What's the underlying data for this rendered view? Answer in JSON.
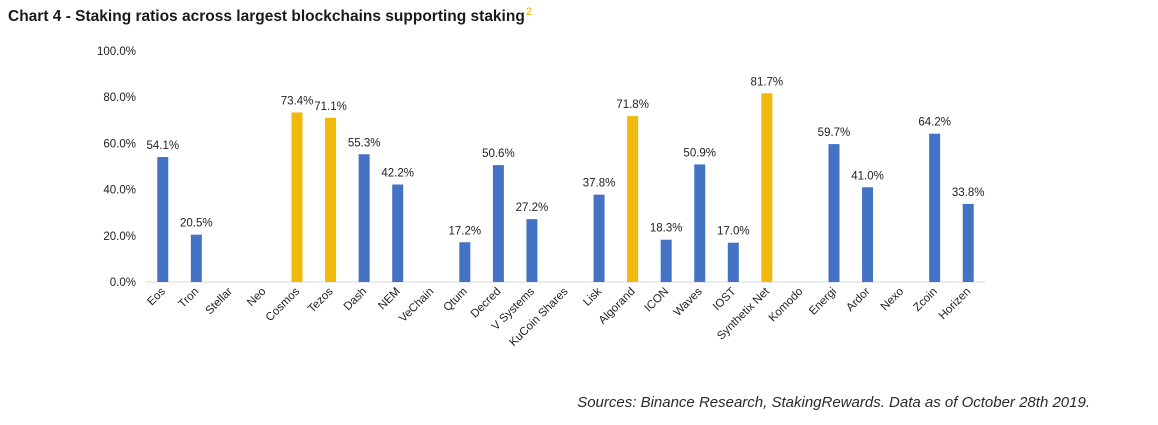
{
  "title": "Chart 4 - Staking ratios across largest blockchains supporting staking",
  "title_footnote": "2",
  "source": "Sources: Binance Research, StakingRewards. Data as of October 28th 2019.",
  "colors": {
    "default": "#4472c4",
    "highlight": "#f0b90b",
    "axis": "#d9d9d9",
    "text": "#222222"
  },
  "chart_data": {
    "type": "bar",
    "title": "Staking ratios across largest blockchains supporting staking",
    "xlabel": "",
    "ylabel": "",
    "ylim": [
      0,
      100
    ],
    "yticks": [
      "0.0%",
      "20.0%",
      "40.0%",
      "60.0%",
      "80.0%",
      "100.0%"
    ],
    "grid": false,
    "categories": [
      "Eos",
      "Tron",
      "Stellar",
      "Neo",
      "Cosmos",
      "Tezos",
      "Dash",
      "NEM",
      "VeChain",
      "Qtum",
      "Decred",
      "V Systems",
      "KuCoin Shares",
      "Lisk",
      "Algorand",
      "ICON",
      "Waves",
      "IOST",
      "Synthetix Net",
      "Komodo",
      "Energi",
      "Ardor",
      "Nexo",
      "Zcoin",
      "Horizen"
    ],
    "values": [
      54.1,
      20.5,
      null,
      null,
      73.4,
      71.1,
      55.3,
      42.2,
      null,
      17.2,
      50.6,
      27.2,
      null,
      37.8,
      71.8,
      18.3,
      50.9,
      17.0,
      81.7,
      null,
      59.7,
      41.0,
      null,
      64.2,
      33.8
    ],
    "labels": [
      "54.1%",
      "20.5%",
      "",
      "",
      "73.4%",
      "71.1%",
      "55.3%",
      "42.2%",
      "",
      "17.2%",
      "50.6%",
      "27.2%",
      "",
      "37.8%",
      "71.8%",
      "18.3%",
      "50.9%",
      "17.0%",
      "81.7%",
      "",
      "59.7%",
      "41.0%",
      "",
      "64.2%",
      "33.8%"
    ],
    "highlighted": [
      "Cosmos",
      "Tezos",
      "Algorand",
      "Synthetix Net"
    ]
  }
}
